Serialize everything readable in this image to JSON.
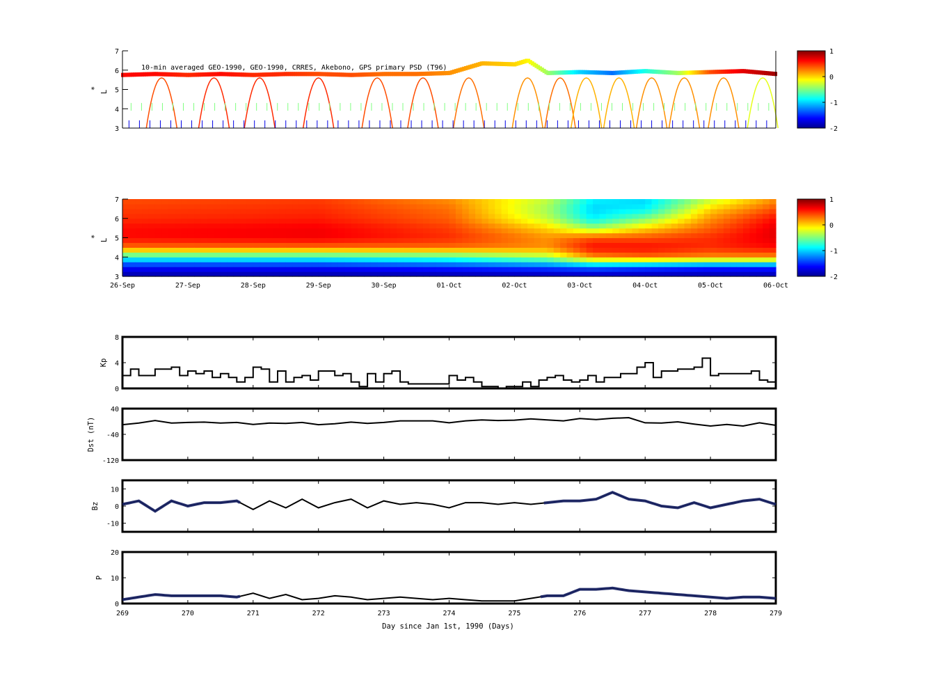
{
  "figure": {
    "annotation": "10-min averaged GEO-1990, GEO-1990, CRRES, Akebono, GPS  primary PSD (T96)",
    "xlabel": "Day since Jan 1st, 1990 (Days)"
  },
  "chart_data": [
    {
      "type": "scatter",
      "panel": "L* orbit tracks colored by log PSD",
      "ylabel": "L",
      "ylabel_mark": "*",
      "ylim": [
        3,
        7
      ],
      "yticks": [
        "3",
        "4",
        "5",
        "6",
        "7"
      ],
      "xlim": [
        269,
        279
      ],
      "colorbar": {
        "min": -2,
        "max": 1,
        "ticks": [
          "-2",
          "-1",
          "0",
          "1"
        ]
      },
      "geo_track": {
        "x": [
          269.0,
          269.5,
          270.0,
          270.5,
          271.0,
          271.5,
          272.0,
          272.5,
          273.0,
          273.5,
          274.0,
          274.5,
          275.0,
          275.2,
          275.5,
          276.0,
          276.5,
          277.0,
          277.5,
          278.0,
          278.5,
          279.0
        ],
        "y": [
          5.75,
          5.8,
          5.75,
          5.8,
          5.75,
          5.8,
          5.8,
          5.75,
          5.8,
          5.8,
          5.85,
          6.35,
          6.3,
          6.5,
          5.85,
          5.9,
          5.85,
          5.95,
          5.85,
          5.9,
          5.95,
          5.8
        ],
        "psd": [
          0.6,
          0.6,
          0.5,
          0.6,
          0.5,
          0.5,
          0.4,
          0.4,
          0.3,
          0.3,
          0.2,
          0.1,
          0.0,
          -0.1,
          -0.4,
          -1.0,
          -1.3,
          -0.8,
          -0.4,
          0.4,
          0.7,
          0.9
        ]
      },
      "arcs": [
        {
          "x": 269.6,
          "psd": 0.4
        },
        {
          "x": 270.4,
          "psd": 0.5
        },
        {
          "x": 271.1,
          "psd": 0.5
        },
        {
          "x": 272.0,
          "psd": 0.5
        },
        {
          "x": 272.9,
          "psd": 0.4
        },
        {
          "x": 273.6,
          "psd": 0.4
        },
        {
          "x": 274.3,
          "psd": 0.3
        },
        {
          "x": 275.2,
          "psd": 0.2
        },
        {
          "x": 275.7,
          "psd": 0.3
        },
        {
          "x": 276.1,
          "psd": 0.1
        },
        {
          "x": 276.6,
          "psd": 0.1
        },
        {
          "x": 277.1,
          "psd": 0.2
        },
        {
          "x": 277.6,
          "psd": 0.2
        },
        {
          "x": 278.2,
          "psd": 0.2
        },
        {
          "x": 278.8,
          "psd": -0.2
        }
      ]
    },
    {
      "type": "heatmap",
      "panel": "Assimilated log PSD vs L*",
      "ylabel": "L",
      "ylabel_mark": "*",
      "ylim": [
        3,
        7
      ],
      "yticks": [
        "3",
        "4",
        "5",
        "6",
        "7"
      ],
      "xlim": [
        269,
        279
      ],
      "xtick_labels": [
        "26-Sep",
        "27-Sep",
        "28-Sep",
        "29-Sep",
        "30-Sep",
        "01-Oct",
        "02-Oct",
        "03-Oct",
        "04-Oct",
        "05-Oct",
        "06-Oct"
      ],
      "colorbar": {
        "min": -2,
        "max": 1,
        "ticks": [
          "-2",
          "-1",
          "0",
          "1"
        ]
      },
      "l_levels": [
        3.0,
        3.5,
        4.0,
        4.5,
        5.0,
        5.5,
        6.0,
        6.5,
        7.0
      ],
      "psd_profiles": [
        {
          "x": 269.0,
          "psd": [
            -1.9,
            -1.6,
            -0.8,
            0.3,
            0.6,
            0.6,
            0.5,
            0.45,
            0.4
          ]
        },
        {
          "x": 272.0,
          "psd": [
            -1.9,
            -1.6,
            -0.8,
            0.3,
            0.65,
            0.65,
            0.55,
            0.5,
            0.45
          ]
        },
        {
          "x": 274.0,
          "psd": [
            -1.9,
            -1.5,
            -0.7,
            0.3,
            0.5,
            0.45,
            0.35,
            0.3,
            0.2
          ]
        },
        {
          "x": 275.5,
          "psd": [
            -1.9,
            -1.4,
            -0.4,
            0.2,
            0.2,
            0.0,
            -0.3,
            -0.4,
            -0.3
          ]
        },
        {
          "x": 276.2,
          "psd": [
            -1.9,
            -1.3,
            0.2,
            0.6,
            0.4,
            -0.4,
            -0.9,
            -1.0,
            -0.9
          ]
        },
        {
          "x": 277.0,
          "psd": [
            -1.9,
            -1.4,
            0.3,
            0.6,
            0.4,
            0.0,
            -0.5,
            -0.9,
            -1.0
          ]
        },
        {
          "x": 278.0,
          "psd": [
            -1.9,
            -1.5,
            0.2,
            0.5,
            0.5,
            0.35,
            0.2,
            0.0,
            -0.3
          ]
        },
        {
          "x": 279.0,
          "psd": [
            -1.9,
            -1.5,
            0.2,
            0.6,
            0.7,
            0.7,
            0.6,
            0.4,
            0.2
          ]
        }
      ]
    },
    {
      "type": "line",
      "panel": "Kp",
      "ylabel": "Kp",
      "ylim": [
        0,
        8
      ],
      "yticks": [
        "0",
        "4",
        "8"
      ],
      "xlim": [
        269,
        279
      ],
      "x": [
        269.0,
        269.125,
        269.25,
        269.375,
        269.5,
        269.625,
        269.75,
        269.875,
        270.0,
        270.125,
        270.25,
        270.375,
        270.5,
        270.625,
        270.75,
        270.875,
        271.0,
        271.125,
        271.25,
        271.375,
        271.5,
        271.625,
        271.75,
        271.875,
        272.0,
        272.125,
        272.25,
        272.375,
        272.5,
        272.625,
        272.75,
        272.875,
        273.0,
        273.125,
        273.25,
        273.375,
        273.5,
        273.625,
        273.75,
        273.875,
        274.0,
        274.125,
        274.25,
        274.375,
        274.5,
        274.625,
        274.75,
        274.875,
        275.0,
        275.125,
        275.25,
        275.375,
        275.5,
        275.625,
        275.75,
        275.875,
        276.0,
        276.125,
        276.25,
        276.375,
        276.5,
        276.625,
        276.75,
        276.875,
        277.0,
        277.125,
        277.25,
        277.375,
        277.5,
        277.625,
        277.75,
        277.875,
        278.0,
        278.125,
        278.25,
        278.375,
        278.5,
        278.625,
        278.75,
        278.875,
        279.0
      ],
      "values": [
        2.0,
        3.0,
        2.0,
        2.0,
        3.0,
        3.0,
        3.3,
        2.0,
        2.7,
        2.3,
        2.7,
        1.7,
        2.3,
        1.7,
        1.0,
        1.7,
        3.3,
        3.0,
        1.0,
        2.7,
        1.0,
        1.7,
        2.0,
        1.3,
        2.7,
        2.7,
        2.0,
        2.3,
        1.0,
        0.3,
        2.3,
        1.0,
        2.3,
        2.7,
        1.0,
        0.7,
        0.7,
        0.7,
        0.7,
        0.7,
        2.0,
        1.3,
        1.7,
        1.0,
        0.3,
        0.3,
        0.0,
        0.3,
        0.3,
        1.0,
        0.3,
        1.3,
        1.7,
        2.0,
        1.3,
        1.0,
        1.3,
        2.0,
        1.0,
        1.7,
        1.7,
        2.3,
        2.3,
        3.3,
        4.0,
        1.7,
        2.7,
        2.7,
        3.0,
        3.0,
        3.3,
        4.7,
        2.0,
        2.3,
        2.3,
        2.3,
        2.3,
        2.7,
        1.3,
        1.0,
        2.3
      ]
    },
    {
      "type": "line",
      "panel": "Dst",
      "ylabel": "Dst (nT)",
      "ylim": [
        -120,
        40
      ],
      "yticks": [
        "-120",
        "-40",
        "40"
      ],
      "xlim": [
        269,
        279
      ],
      "x": [
        269.0,
        269.25,
        269.5,
        269.75,
        270.0,
        270.25,
        270.5,
        270.75,
        271.0,
        271.25,
        271.5,
        271.75,
        272.0,
        272.25,
        272.5,
        272.75,
        273.0,
        273.25,
        273.5,
        273.75,
        274.0,
        274.25,
        274.5,
        274.75,
        275.0,
        275.25,
        275.5,
        275.75,
        276.0,
        276.25,
        276.5,
        276.75,
        277.0,
        277.25,
        277.5,
        277.75,
        278.0,
        278.25,
        278.5,
        278.75,
        279.0
      ],
      "values": [
        -10,
        -5,
        3,
        -5,
        -3,
        -2,
        -5,
        -3,
        -9,
        -5,
        -6,
        -3,
        -10,
        -7,
        -2,
        -6,
        -3,
        2,
        2,
        2,
        -4,
        2,
        5,
        3,
        4,
        8,
        5,
        2,
        9,
        6,
        10,
        12,
        -4,
        -5,
        -1,
        -8,
        -14,
        -9,
        -14,
        -4,
        -12
      ]
    },
    {
      "type": "line",
      "panel": "Bz",
      "ylabel": "Bz",
      "ylim": [
        -15,
        15
      ],
      "yticks": [
        "-10",
        "0",
        "10"
      ],
      "xlim": [
        269,
        279
      ],
      "x": [
        269.0,
        269.25,
        269.5,
        269.75,
        270.0,
        270.25,
        270.5,
        270.75,
        271.0,
        271.25,
        271.5,
        271.75,
        272.0,
        272.25,
        272.5,
        272.75,
        273.0,
        273.25,
        273.5,
        273.75,
        274.0,
        274.25,
        274.5,
        274.75,
        275.0,
        275.25,
        275.5,
        275.75,
        276.0,
        276.25,
        276.5,
        276.75,
        277.0,
        277.25,
        277.5,
        277.75,
        278.0,
        278.25,
        278.5,
        278.75,
        279.0
      ],
      "values": [
        1,
        3,
        -3,
        3,
        0,
        2,
        2,
        3,
        -2,
        3,
        -1,
        4,
        -1,
        2,
        4,
        -1,
        3,
        1,
        2,
        1,
        -1,
        2,
        2,
        1,
        2,
        1,
        2,
        3,
        3,
        4,
        8,
        4,
        3,
        0,
        -1,
        2,
        -1,
        1,
        3,
        4,
        1
      ],
      "measured_ranges": [
        [
          269.0,
          270.8
        ],
        [
          275.45,
          279.0
        ]
      ],
      "measured_color": "#1a2466"
    },
    {
      "type": "line",
      "panel": "Solar wind pressure",
      "ylabel": "P",
      "ylim": [
        0,
        20
      ],
      "yticks": [
        "0",
        "10",
        "20"
      ],
      "xlim": [
        269,
        279
      ],
      "xticks": [
        "269",
        "270",
        "271",
        "272",
        "273",
        "274",
        "275",
        "276",
        "277",
        "278",
        "279"
      ],
      "x": [
        269.0,
        269.25,
        269.5,
        269.75,
        270.0,
        270.25,
        270.5,
        270.75,
        271.0,
        271.25,
        271.5,
        271.75,
        272.0,
        272.25,
        272.5,
        272.75,
        273.0,
        273.25,
        273.5,
        273.75,
        274.0,
        274.25,
        274.5,
        274.75,
        275.0,
        275.25,
        275.5,
        275.75,
        276.0,
        276.25,
        276.5,
        276.75,
        277.0,
        277.25,
        277.5,
        277.75,
        278.0,
        278.25,
        278.5,
        278.75,
        279.0
      ],
      "values": [
        1.5,
        2.5,
        3.5,
        3.0,
        3.0,
        3.0,
        3.0,
        2.5,
        4.0,
        2.0,
        3.5,
        1.5,
        2.0,
        3.0,
        2.5,
        1.5,
        2.0,
        2.5,
        2.0,
        1.5,
        2.0,
        1.5,
        1.0,
        1.0,
        1.0,
        2.0,
        3.0,
        3.0,
        5.5,
        5.5,
        6.0,
        5.0,
        4.5,
        4.0,
        3.5,
        3.0,
        2.5,
        2.0,
        2.5,
        2.5,
        2.0
      ],
      "measured_ranges": [
        [
          269.0,
          270.8
        ],
        [
          275.4,
          279.0
        ]
      ],
      "measured_color": "#1a2466"
    }
  ]
}
